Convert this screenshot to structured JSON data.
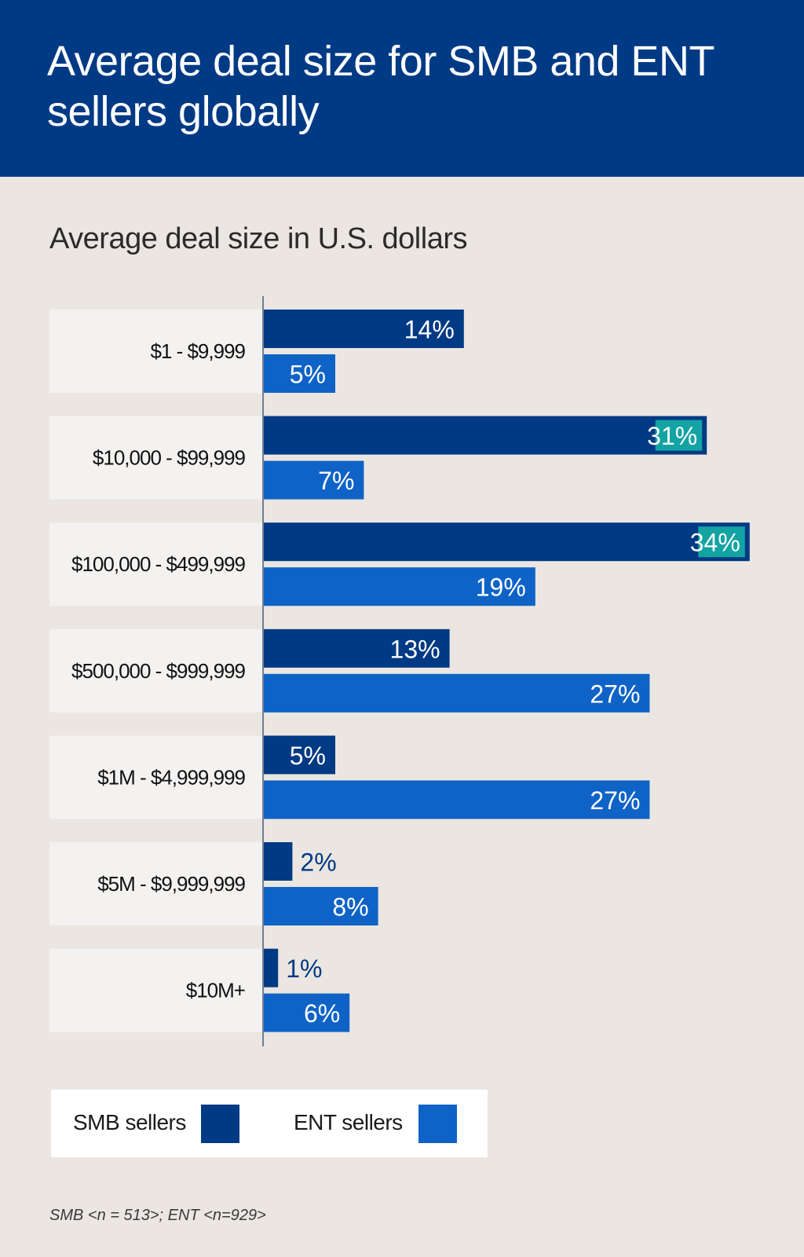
{
  "header": {
    "title": "Average deal size for SMB and ENT sellers globally"
  },
  "colors": {
    "header_bg": "#003a84",
    "smb": "#003a84",
    "ent": "#0f63c6",
    "highlight": "#13a3a3",
    "page_bg": "#ebe6e1",
    "label_bg": "#f4f2f0"
  },
  "chart_data": {
    "type": "bar",
    "orientation": "horizontal",
    "title": "Average deal size in U.S. dollars",
    "categories": [
      "$1 - $9,999",
      "$10,000 - $99,999",
      "$100,000 - $499,999",
      "$500,000 - $999,999",
      "$1M - $4,999,999",
      "$5M - $9,999,999",
      "$10M+"
    ],
    "series": [
      {
        "name": "SMB sellers",
        "values": [
          14,
          31,
          34,
          13,
          5,
          2,
          1
        ],
        "labels": [
          "14%",
          "31%",
          "34%",
          "13%",
          "5%",
          "2%",
          "1%"
        ],
        "highlighted": [
          false,
          true,
          true,
          false,
          false,
          false,
          false
        ]
      },
      {
        "name": "ENT sellers",
        "values": [
          5,
          7,
          19,
          27,
          27,
          8,
          6
        ],
        "labels": [
          "5%",
          "7%",
          "19%",
          "27%",
          "27%",
          "8%",
          "6%"
        ]
      }
    ],
    "xlim": [
      0,
      34
    ],
    "unit": "%",
    "legend": "bottom-left"
  },
  "legend": {
    "smb_label": "SMB sellers",
    "ent_label": "ENT sellers"
  },
  "footnote": "SMB <n = 513>; ENT <n=929>"
}
